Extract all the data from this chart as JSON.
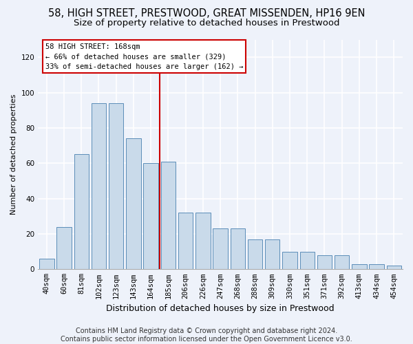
{
  "title1": "58, HIGH STREET, PRESTWOOD, GREAT MISSENDEN, HP16 9EN",
  "title2": "Size of property relative to detached houses in Prestwood",
  "xlabel": "Distribution of detached houses by size in Prestwood",
  "ylabel": "Number of detached properties",
  "footer1": "Contains HM Land Registry data © Crown copyright and database right 2024.",
  "footer2": "Contains public sector information licensed under the Open Government Licence v3.0.",
  "categories": [
    "40sqm",
    "60sqm",
    "81sqm",
    "102sqm",
    "123sqm",
    "143sqm",
    "164sqm",
    "185sqm",
    "206sqm",
    "226sqm",
    "247sqm",
    "268sqm",
    "288sqm",
    "309sqm",
    "330sqm",
    "351sqm",
    "371sqm",
    "392sqm",
    "413sqm",
    "434sqm",
    "454sqm"
  ],
  "bar_values": [
    6,
    24,
    65,
    94,
    94,
    74,
    60,
    61,
    32,
    32,
    23,
    23,
    17,
    17,
    10,
    10,
    8,
    8,
    3,
    3,
    2
  ],
  "bar_color": "#c9daea",
  "bar_edge_color": "#5b8db8",
  "annotation_line1": "58 HIGH STREET: 168sqm",
  "annotation_line2": "← 66% of detached houses are smaller (329)",
  "annotation_line3": "33% of semi-detached houses are larger (162) →",
  "annotation_box_color": "#ffffff",
  "annotation_box_edge": "#cc0000",
  "vline_color": "#cc0000",
  "vline_x_index": 6.5,
  "ylim": [
    0,
    130
  ],
  "yticks": [
    0,
    20,
    40,
    60,
    80,
    100,
    120
  ],
  "background_color": "#eef2fa",
  "grid_color": "#ffffff",
  "title1_fontsize": 10.5,
  "title2_fontsize": 9.5,
  "xlabel_fontsize": 9,
  "ylabel_fontsize": 8,
  "tick_fontsize": 7.5,
  "annotation_fontsize": 7.5,
  "footer_fontsize": 7
}
